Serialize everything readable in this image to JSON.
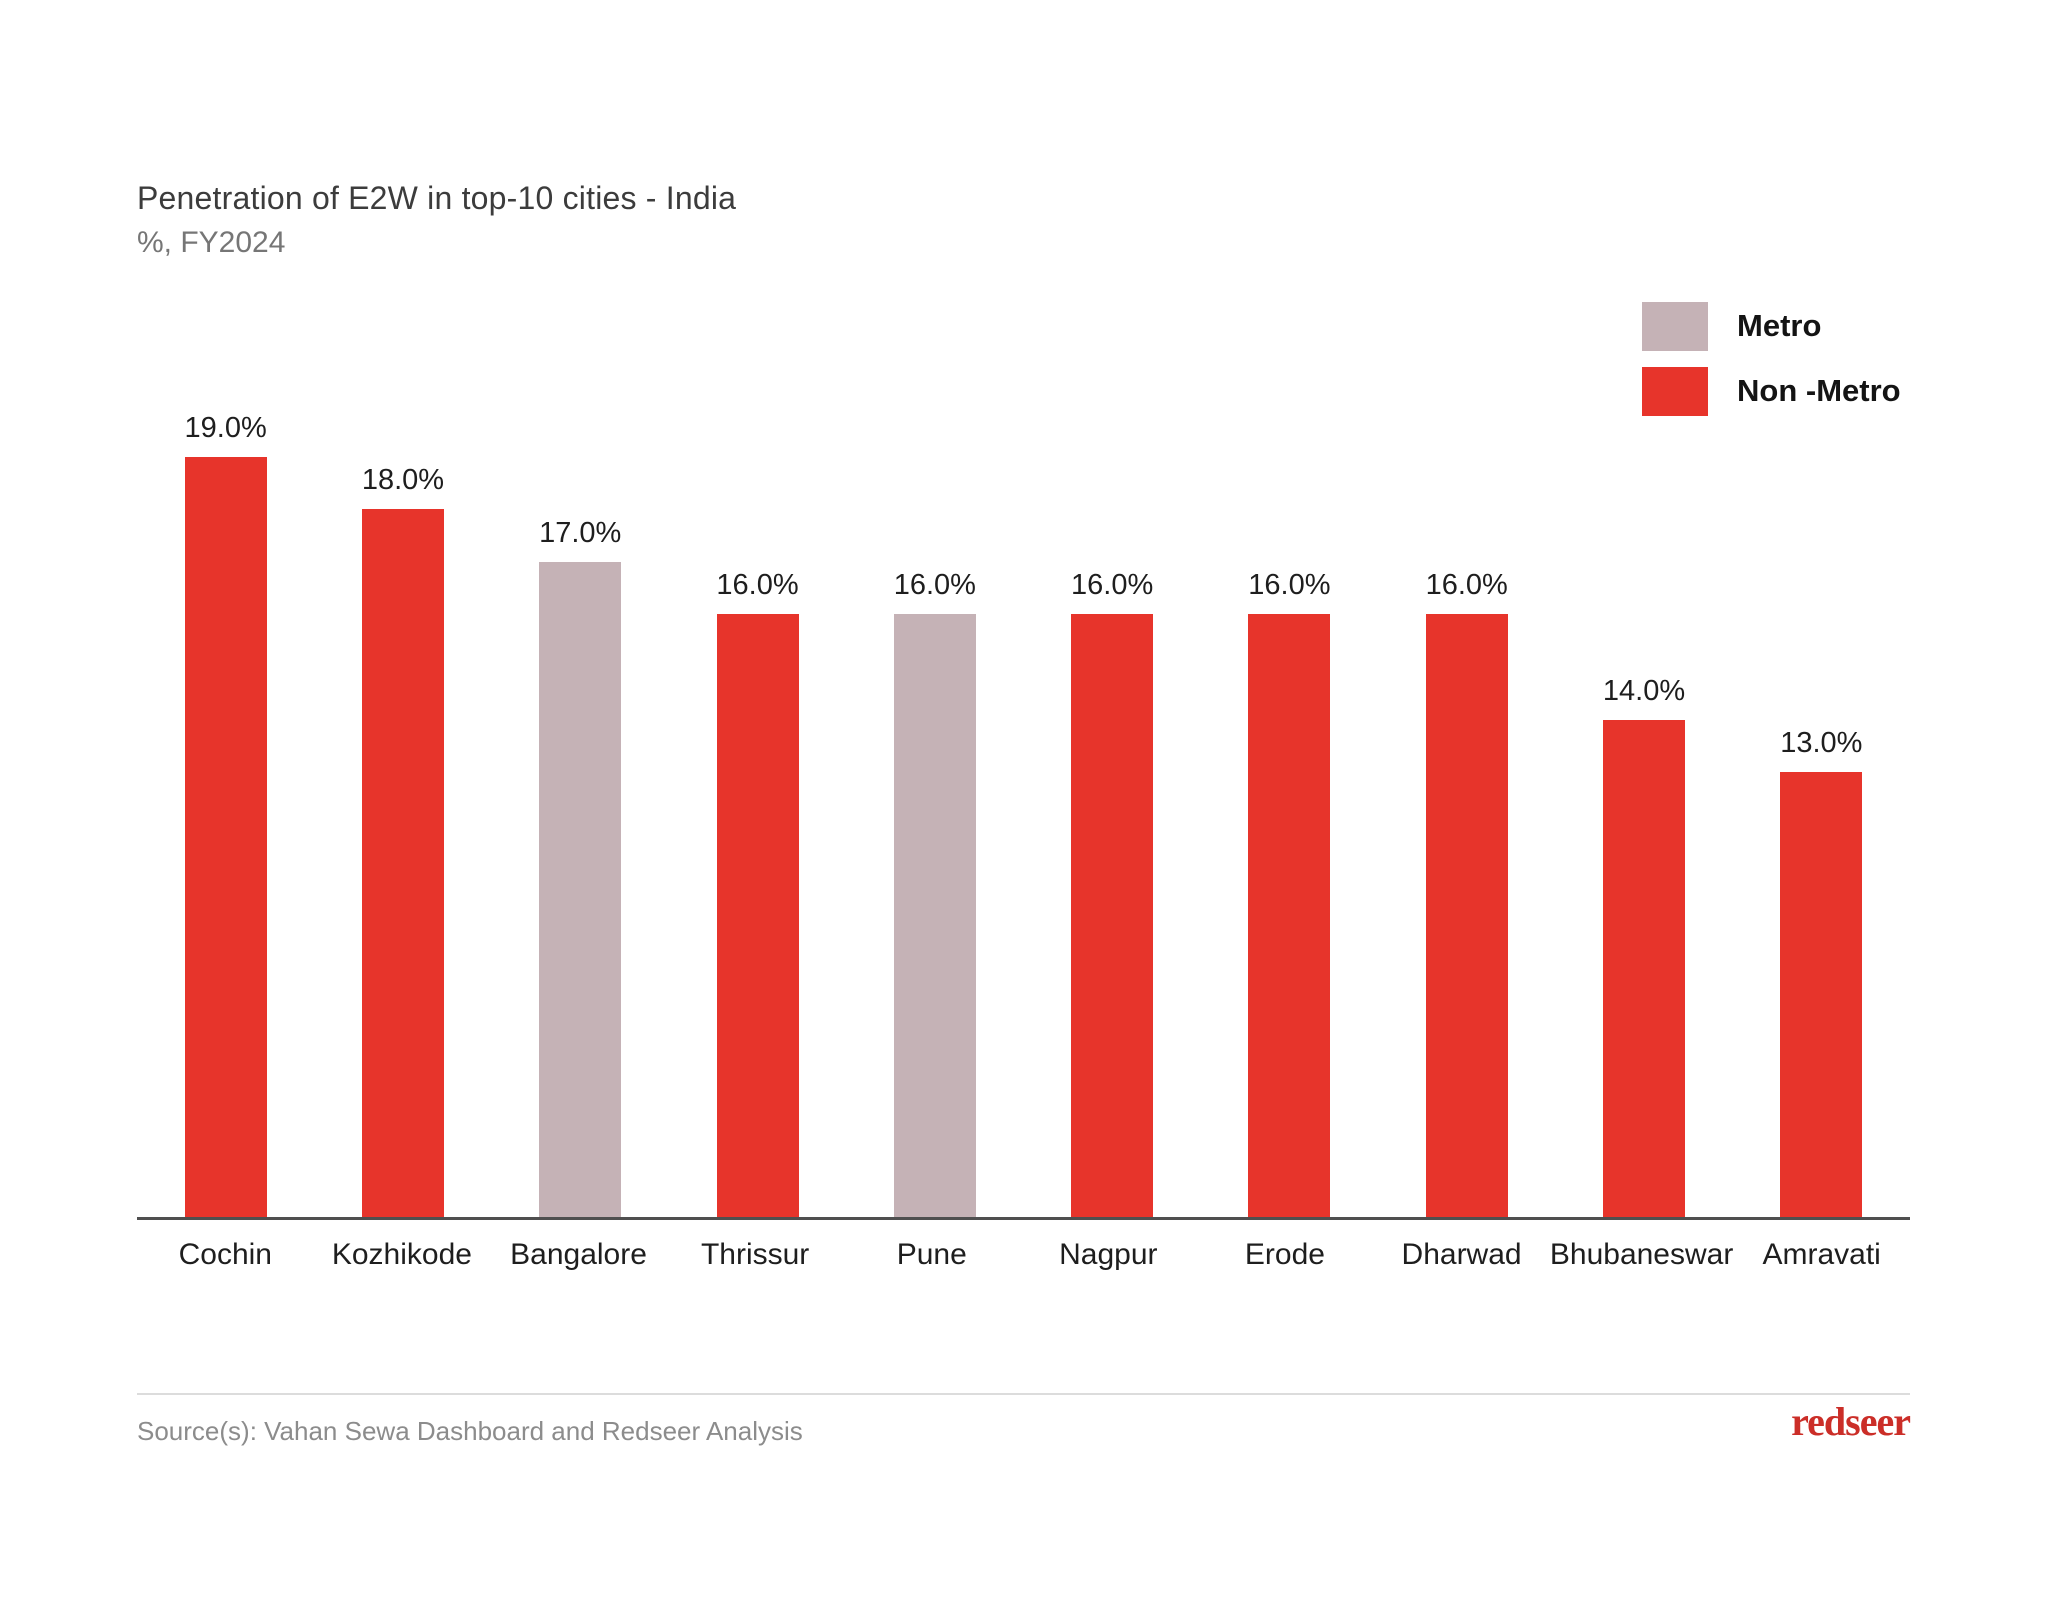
{
  "header": {
    "title": "Penetration of E2W in top-10 cities - India",
    "subtitle": "%, FY2024"
  },
  "legend": {
    "items": [
      {
        "label": "Metro",
        "color": "#C5B2B6"
      },
      {
        "label": "Non -Metro",
        "color": "#E7342B"
      }
    ]
  },
  "chart_data": {
    "type": "bar",
    "title": "Penetration of E2W in top-10 cities - India",
    "unit_label": "%, FY2024",
    "categories": [
      "Cochin",
      "Kozhikode",
      "Bangalore",
      "Thrissur",
      "Pune",
      "Nagpur",
      "Erode",
      "Dharwad",
      "Bhubaneswar",
      "Amravati"
    ],
    "values": [
      19.0,
      18.0,
      17.0,
      16.0,
      16.0,
      16.0,
      16.0,
      16.0,
      14.0,
      13.0
    ],
    "value_labels": [
      "19.0%",
      "18.0%",
      "17.0%",
      "16.0%",
      "16.0%",
      "16.0%",
      "16.0%",
      "16.0%",
      "14.0%",
      "13.0%"
    ],
    "group_by_city": [
      "Non -Metro",
      "Non -Metro",
      "Metro",
      "Non -Metro",
      "Metro",
      "Non -Metro",
      "Non -Metro",
      "Non -Metro",
      "Non -Metro",
      "Non -Metro"
    ],
    "legend": [
      "Metro",
      "Non -Metro"
    ],
    "legend_position": "top-right",
    "grid": false,
    "y_axis_visible": false,
    "ylim": [
      0,
      19
    ],
    "xlabel": "",
    "ylabel": ""
  },
  "footer": {
    "source": "Source(s): Vahan Sewa Dashboard and Redseer Analysis",
    "logo_text": "redseer"
  },
  "colors": {
    "metro": "#C5B2B6",
    "non_metro": "#E7342B",
    "axis": "#4F4F4F",
    "title_text": "#3C3C3C",
    "subtitle_text": "#767676",
    "label_text": "#1E1E1E",
    "source_text": "#8C8C8C",
    "logo_red": "#CB2E28"
  }
}
